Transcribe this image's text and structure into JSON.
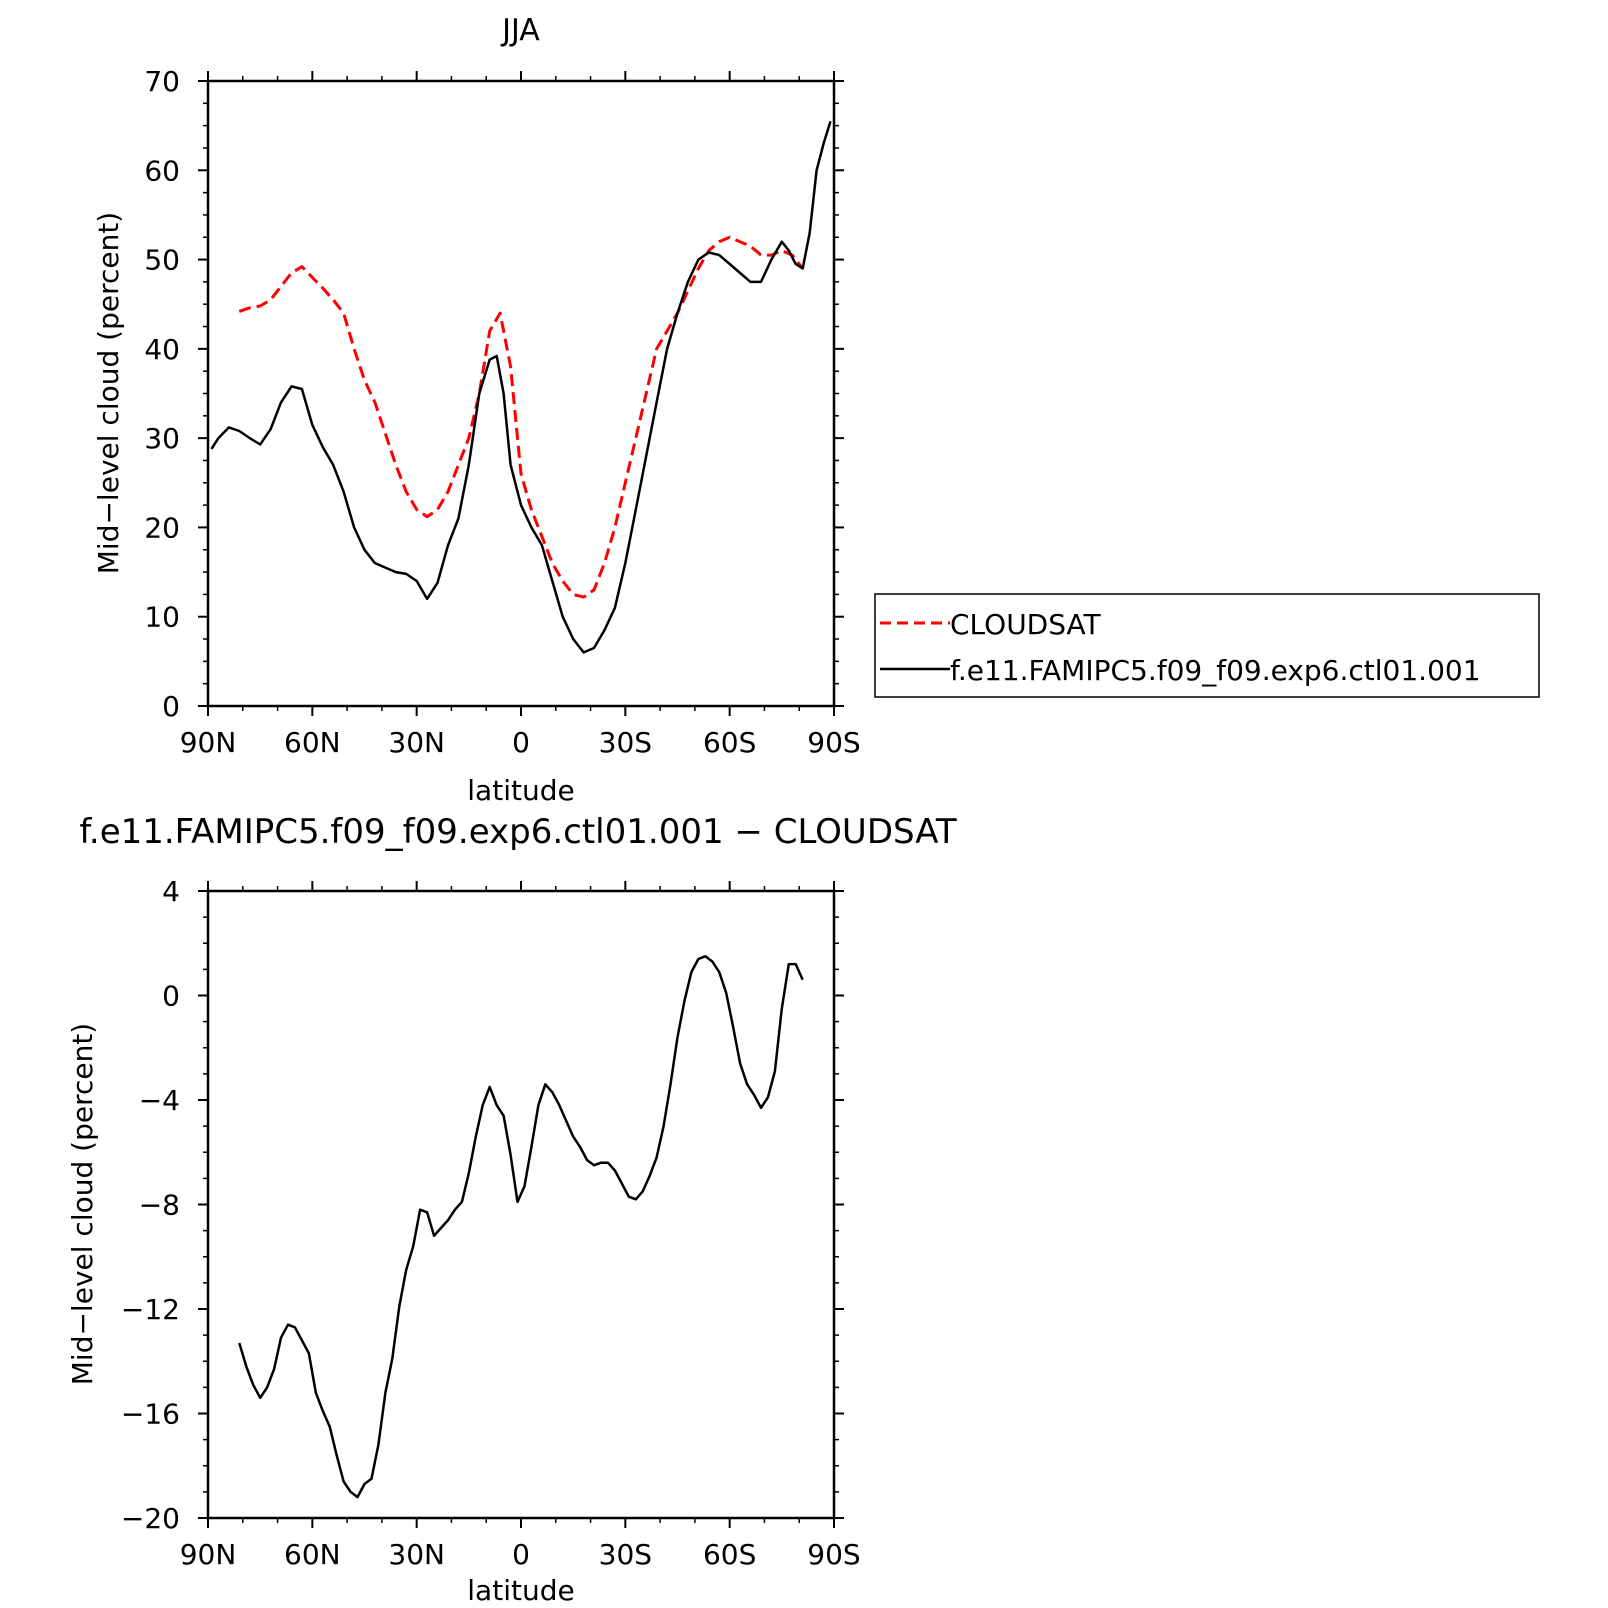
{
  "chart_data": [
    {
      "type": "line",
      "title": "JJA",
      "xlabel": "latitude",
      "ylabel": "Mid−level cloud (percent)",
      "xlim": [
        -90,
        90
      ],
      "ylim": [
        0,
        70
      ],
      "xticks": [
        -90,
        -60,
        -30,
        0,
        30,
        60,
        90
      ],
      "xtick_labels": [
        "90N",
        "60N",
        "30N",
        "0",
        "30S",
        "60S",
        "90S"
      ],
      "yticks": [
        0,
        10,
        20,
        30,
        40,
        50,
        60,
        70
      ],
      "ytick_labels": [
        "0",
        "10",
        "20",
        "30",
        "40",
        "50",
        "60",
        "70"
      ],
      "legend_position": "right",
      "series": [
        {
          "name": "CLOUDSAT",
          "color": "#ff0000",
          "dash": "dashed",
          "x": [
            -81,
            -78,
            -75,
            -72,
            -69,
            -66,
            -63,
            -60,
            -57,
            -54,
            -51,
            -48,
            -45,
            -42,
            -39,
            -36,
            -33,
            -30,
            -27,
            -24,
            -21,
            -18,
            -15,
            -12,
            -9,
            -6,
            -3,
            0,
            3,
            6,
            9,
            12,
            15,
            18,
            21,
            24,
            27,
            30,
            33,
            36,
            39,
            42,
            45,
            48,
            51,
            54,
            57,
            60,
            63,
            66,
            69,
            72,
            75,
            78,
            81
          ],
          "y": [
            44.2,
            44.6,
            44.8,
            45.5,
            47.0,
            48.5,
            49.2,
            48.0,
            46.8,
            45.5,
            44.0,
            40.0,
            36.5,
            34.0,
            30.5,
            27.0,
            24.0,
            22.0,
            21.2,
            22.0,
            24.0,
            27.0,
            30.0,
            35.0,
            42.0,
            44.0,
            38.0,
            26.0,
            22.0,
            19.0,
            16.0,
            14.0,
            12.5,
            12.2,
            13.0,
            16.0,
            20.0,
            25.0,
            30.0,
            35.0,
            40.0,
            42.0,
            44.0,
            46.5,
            49.0,
            51.0,
            52.0,
            52.5,
            52.0,
            51.5,
            50.5,
            50.5,
            51.0,
            50.5,
            49.0
          ]
        },
        {
          "name": "f.e11.FAMIPC5.f09_f09.exp6.ctl01.001",
          "color": "#000000",
          "dash": "solid",
          "x": [
            -89,
            -87,
            -84,
            -81,
            -78,
            -75,
            -72,
            -69,
            -66,
            -63,
            -60,
            -57,
            -54,
            -51,
            -48,
            -45,
            -42,
            -39,
            -36,
            -33,
            -30,
            -27,
            -24,
            -21,
            -18,
            -15,
            -12,
            -9,
            -7,
            -5,
            -3,
            0,
            3,
            6,
            9,
            12,
            15,
            18,
            21,
            24,
            27,
            30,
            33,
            36,
            39,
            42,
            45,
            48,
            51,
            54,
            57,
            60,
            63,
            66,
            69,
            72,
            75,
            77,
            79,
            81,
            83,
            85,
            87,
            89
          ],
          "y": [
            28.8,
            30.0,
            31.2,
            30.8,
            30.0,
            29.3,
            31.0,
            34.0,
            35.8,
            35.5,
            31.5,
            29.0,
            27.0,
            24.0,
            20.0,
            17.5,
            16.0,
            15.5,
            15.0,
            14.8,
            14.0,
            12.0,
            13.8,
            18.0,
            21.0,
            27.0,
            35.0,
            38.8,
            39.2,
            35.0,
            27.0,
            22.5,
            20.0,
            18.0,
            14.0,
            10.0,
            7.5,
            6.0,
            6.5,
            8.5,
            11.0,
            16.0,
            22.0,
            28.0,
            34.0,
            40.0,
            44.0,
            47.5,
            50.0,
            50.8,
            50.5,
            49.5,
            48.5,
            47.5,
            47.5,
            50.0,
            52.0,
            51.0,
            49.5,
            49.0,
            53.0,
            60.0,
            63.0,
            65.5
          ]
        }
      ]
    },
    {
      "type": "line",
      "title": "f.e11.FAMIPC5.f09_f09.exp6.ctl01.001 − CLOUDSAT",
      "xlabel": "latitude",
      "ylabel": "Mid−level cloud (percent)",
      "xlim": [
        -90,
        90
      ],
      "ylim": [
        -20,
        4
      ],
      "xticks": [
        -90,
        -60,
        -30,
        0,
        30,
        60,
        90
      ],
      "xtick_labels": [
        "90N",
        "60N",
        "30N",
        "0",
        "30S",
        "60S",
        "90S"
      ],
      "yticks": [
        -20,
        -16,
        -12,
        -8,
        -4,
        0,
        4
      ],
      "ytick_labels": [
        "−20",
        "−16",
        "−12",
        "−8",
        "−4",
        "0",
        "4"
      ],
      "series": [
        {
          "color": "#000000",
          "dash": "solid",
          "x": [
            -81,
            -79,
            -77,
            -75,
            -73,
            -71,
            -69,
            -67,
            -65,
            -63,
            -61,
            -59,
            -57,
            -55,
            -53,
            -51,
            -49,
            -47,
            -45,
            -43,
            -41,
            -39,
            -37,
            -35,
            -33,
            -31,
            -29,
            -27,
            -25,
            -23,
            -21,
            -19,
            -17,
            -15,
            -13,
            -11,
            -9,
            -7,
            -5,
            -3,
            -1,
            1,
            3,
            5,
            7,
            9,
            11,
            13,
            15,
            17,
            19,
            21,
            23,
            25,
            27,
            29,
            31,
            33,
            35,
            37,
            39,
            41,
            43,
            45,
            47,
            49,
            51,
            53,
            55,
            57,
            59,
            61,
            63,
            65,
            67,
            69,
            71,
            73,
            75,
            77,
            79,
            81
          ],
          "y": [
            -13.3,
            -14.2,
            -14.9,
            -15.4,
            -15.0,
            -14.3,
            -13.1,
            -12.6,
            -12.7,
            -13.2,
            -13.7,
            -15.2,
            -15.9,
            -16.5,
            -17.6,
            -18.6,
            -19.0,
            -19.2,
            -18.7,
            -18.5,
            -17.2,
            -15.2,
            -13.9,
            -11.9,
            -10.5,
            -9.6,
            -8.2,
            -8.3,
            -9.2,
            -8.9,
            -8.6,
            -8.2,
            -7.9,
            -6.8,
            -5.4,
            -4.2,
            -3.5,
            -4.2,
            -4.6,
            -6.1,
            -7.9,
            -7.3,
            -5.8,
            -4.2,
            -3.4,
            -3.7,
            -4.2,
            -4.8,
            -5.4,
            -5.8,
            -6.3,
            -6.5,
            -6.4,
            -6.4,
            -6.7,
            -7.2,
            -7.7,
            -7.8,
            -7.5,
            -6.9,
            -6.2,
            -5.0,
            -3.4,
            -1.6,
            -0.2,
            0.9,
            1.4,
            1.5,
            1.3,
            0.9,
            0.1,
            -1.2,
            -2.6,
            -3.4,
            -3.8,
            -4.3,
            -3.9,
            -2.9,
            -0.5,
            1.2,
            1.2,
            0.6
          ]
        }
      ]
    }
  ]
}
